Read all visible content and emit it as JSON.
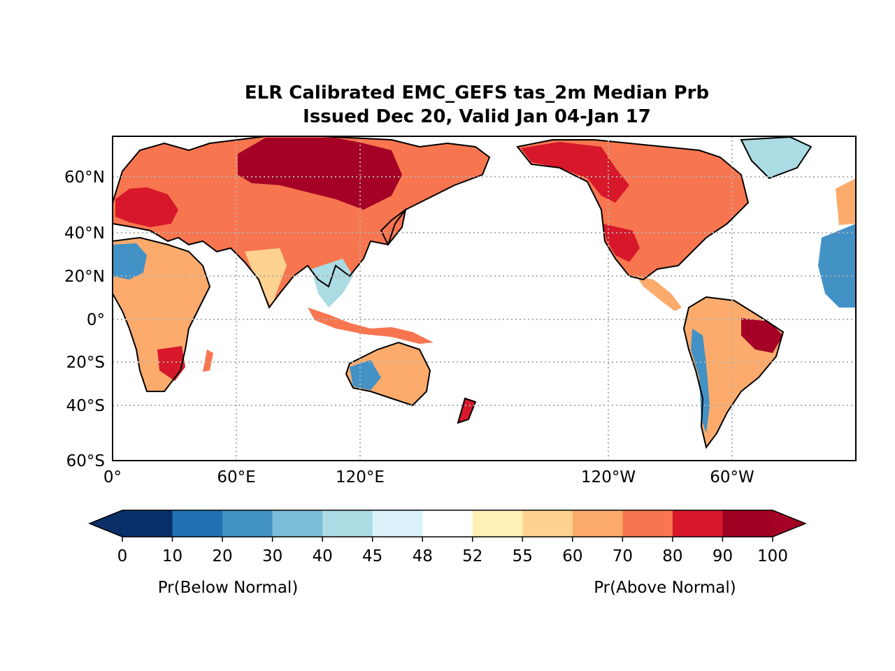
{
  "title": {
    "line1": "ELR Calibrated EMC_GEFS tas_2m Median Prb",
    "line2": "Issued Dec 20, Valid Jan 04-Jan 17"
  },
  "map": {
    "projection": "PlateCarree, central longitude 180",
    "lon_range": [
      0,
      360
    ],
    "lat_range": [
      -60,
      80
    ],
    "gridlines": true,
    "lat_tick_labels": [
      "60°N",
      "40°N",
      "20°N",
      "0°",
      "20°S",
      "40°S",
      "60°S"
    ],
    "lon_tick_labels": [
      "0°",
      "60°E",
      "120°E",
      "120°W",
      "60°W"
    ],
    "ocean_color": "#ffffff",
    "coastline_color": "#000000"
  },
  "colorbar": {
    "levels": [
      "0",
      "10",
      "20",
      "30",
      "40",
      "45",
      "48",
      "52",
      "55",
      "60",
      "70",
      "80",
      "90",
      "100"
    ],
    "colors": [
      "#08306b",
      "#2171b5",
      "#4292c6",
      "#7bbcd8",
      "#abdbe3",
      "#dbf2fb",
      "#ffffff",
      "#fff1b8",
      "#fed290",
      "#fdab6c",
      "#f8764f",
      "#d6182a",
      "#a00021"
    ],
    "extend_low_color": "#0a2f67",
    "extend_high_color": "#a50026",
    "label_below": "Pr(Below Normal)",
    "label_above": "Pr(Above Normal)"
  },
  "legend_palette": {
    "warm_strong": "#a50026",
    "warm": "#d6182a",
    "warm_mid": "#f8764f",
    "warm_light": "#fdab6c",
    "warm_pale": "#fed290",
    "cool_pale": "#abdbe3",
    "cool": "#4292c6",
    "cool_strong": "#2171b5"
  }
}
